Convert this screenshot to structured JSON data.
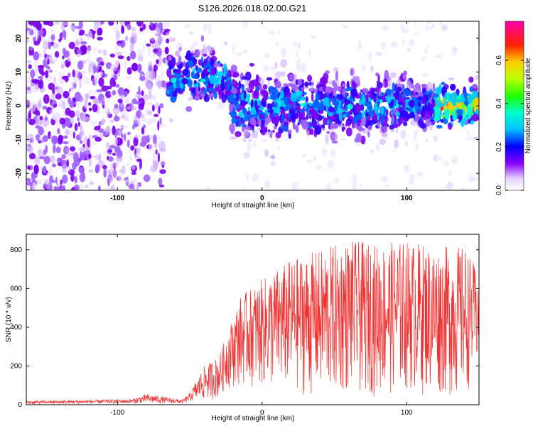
{
  "chart_data": [
    {
      "type": "heatmap",
      "title": "S126.2026.018.02.00.G21",
      "xlabel": "Height of straight line (km)",
      "ylabel": "Frequency (Hz)",
      "xlim": [
        -163,
        150
      ],
      "ylim": [
        -25,
        25
      ],
      "xticks": [
        -100,
        0,
        100
      ],
      "yticks": [
        20,
        10,
        0,
        -10,
        -20
      ],
      "xtick_labels": [
        "-100",
        "0",
        "100"
      ],
      "ytick_labels": [
        "20",
        "10",
        "0",
        "-10",
        "-20"
      ],
      "colorbar": {
        "label": "Normalized spectral amplitude",
        "range": [
          0.0,
          0.78
        ],
        "ticks": [
          0.0,
          0.2,
          0.4,
          0.6
        ],
        "tick_labels": [
          "0.0",
          "0.2",
          "0.4",
          "0.6"
        ]
      },
      "ridge": [
        {
          "x": -163,
          "center": 0,
          "width": 25
        },
        {
          "x": -70,
          "center": 6,
          "width": 10
        },
        {
          "x": -50,
          "center": 8,
          "width": 7
        },
        {
          "x": -25,
          "center": 8,
          "width": 6
        },
        {
          "x": -20,
          "center": 1,
          "width": 8
        },
        {
          "x": 0,
          "center": 0,
          "width": 7
        },
        {
          "x": 50,
          "center": 0,
          "width": 7
        },
        {
          "x": 100,
          "center": 0,
          "width": 6
        },
        {
          "x": 150,
          "center": 0,
          "width": 3
        }
      ]
    },
    {
      "type": "line",
      "xlabel": "Height of straight line (km)",
      "ylabel": "SNR (10 * v/v)",
      "xlim": [
        -163,
        150
      ],
      "ylim": [
        0,
        880
      ],
      "xticks": [
        -100,
        0,
        100
      ],
      "yticks": [
        0,
        200,
        400,
        600,
        800
      ],
      "xtick_labels": [
        "-100",
        "0",
        "100"
      ],
      "ytick_labels": [
        "0",
        "200",
        "400",
        "600",
        "800"
      ],
      "color": "#ee3333",
      "envelope": [
        {
          "x": -163,
          "low": 2,
          "high": 20
        },
        {
          "x": -90,
          "low": 5,
          "high": 28
        },
        {
          "x": -80,
          "low": 5,
          "high": 55
        },
        {
          "x": -55,
          "low": 5,
          "high": 25
        },
        {
          "x": -50,
          "low": 15,
          "high": 60
        },
        {
          "x": -40,
          "low": 20,
          "high": 200
        },
        {
          "x": -30,
          "low": 30,
          "high": 250
        },
        {
          "x": -25,
          "low": 80,
          "high": 350
        },
        {
          "x": -15,
          "low": 100,
          "high": 560
        },
        {
          "x": 0,
          "low": 80,
          "high": 650
        },
        {
          "x": 20,
          "low": 60,
          "high": 750
        },
        {
          "x": 40,
          "low": 30,
          "high": 800
        },
        {
          "x": 60,
          "low": 50,
          "high": 850
        },
        {
          "x": 80,
          "low": 40,
          "high": 830
        },
        {
          "x": 100,
          "low": 60,
          "high": 850
        },
        {
          "x": 120,
          "low": 40,
          "high": 820
        },
        {
          "x": 140,
          "low": 30,
          "high": 820
        },
        {
          "x": 150,
          "low": 200,
          "high": 680
        }
      ]
    }
  ]
}
